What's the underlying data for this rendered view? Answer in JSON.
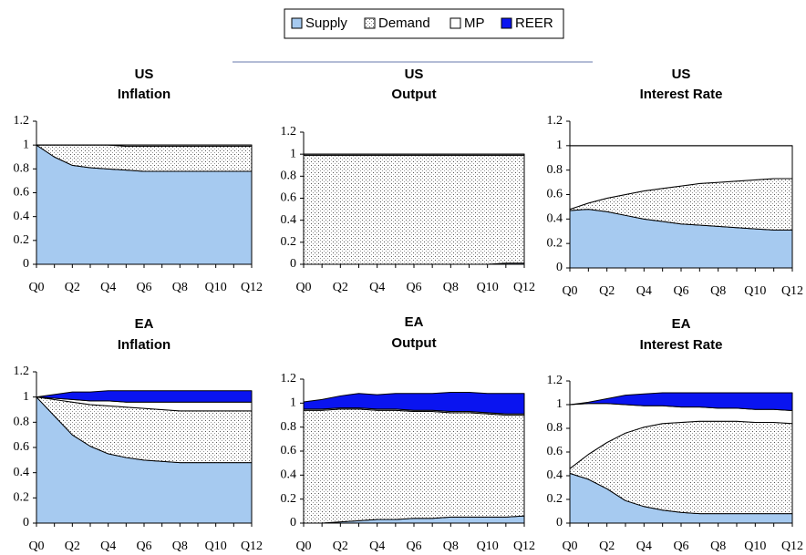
{
  "legend": [
    {
      "name": "Supply",
      "color": "#a6caf0"
    },
    {
      "name": "Demand",
      "color": "dotted"
    },
    {
      "name": "MP",
      "color": "#ffffff"
    },
    {
      "name": "REER",
      "color": "#0a14f0"
    }
  ],
  "chart_data": [
    {
      "type": "stacked-area",
      "title": "US",
      "subtitle": "Inflation",
      "categories": [
        "Q0",
        null,
        "Q2",
        null,
        "Q4",
        null,
        "Q6",
        null,
        "Q8",
        null,
        "Q10",
        null,
        "Q12"
      ],
      "ylim": [
        0,
        1.2
      ],
      "yticks": [
        0,
        0.2,
        0.4,
        0.6,
        0.8,
        1,
        1.2
      ],
      "series": [
        {
          "values": [
            1,
            0.9,
            0.83,
            0.81,
            0.8,
            0.79,
            0.78,
            0.78,
            0.78,
            0.78,
            0.78,
            0.78,
            0.78
          ]
        },
        {
          "values": [
            0,
            0.1,
            0.17,
            0.19,
            0.2,
            0.2,
            0.21,
            0.21,
            0.21,
            0.21,
            0.21,
            0.21,
            0.21
          ]
        },
        {
          "values": [
            0,
            0,
            0,
            0,
            0,
            0.01,
            0.01,
            0.01,
            0.01,
            0.01,
            0.01,
            0.01,
            0.01
          ]
        },
        {
          "values": [
            0,
            0,
            0,
            0,
            0,
            0,
            0,
            0,
            0,
            0,
            0,
            0,
            0
          ]
        }
      ]
    },
    {
      "type": "stacked-area",
      "title": "US",
      "subtitle": "Output",
      "categories": [
        "Q0",
        null,
        "Q2",
        null,
        "Q4",
        null,
        "Q6",
        null,
        "Q8",
        null,
        "Q10",
        null,
        "Q12"
      ],
      "ylim": [
        0,
        1.2
      ],
      "yticks": [
        0,
        0.2,
        0.4,
        0.6,
        0.8,
        1,
        1.2
      ],
      "series": [
        {
          "values": [
            0,
            0,
            0,
            0,
            0,
            0,
            0,
            0,
            0,
            0,
            0,
            0.01,
            0.01
          ]
        },
        {
          "values": [
            0.99,
            0.99,
            0.99,
            0.99,
            0.99,
            0.99,
            0.99,
            0.99,
            0.99,
            0.99,
            0.99,
            0.98,
            0.98
          ]
        },
        {
          "values": [
            0.01,
            0.01,
            0.01,
            0.01,
            0.01,
            0.01,
            0.01,
            0.01,
            0.01,
            0.01,
            0.01,
            0.01,
            0.01
          ]
        },
        {
          "values": [
            0,
            0,
            0,
            0,
            0,
            0,
            0,
            0,
            0,
            0,
            0,
            0,
            0
          ]
        }
      ]
    },
    {
      "type": "stacked-area",
      "title": "US",
      "subtitle": "Interest Rate",
      "categories": [
        "Q0",
        null,
        "Q2",
        null,
        "Q4",
        null,
        "Q6",
        null,
        "Q8",
        null,
        "Q10",
        null,
        "Q12"
      ],
      "ylim": [
        0,
        1.2
      ],
      "yticks": [
        0,
        0.2,
        0.4,
        0.6,
        0.8,
        1,
        1.2
      ],
      "series": [
        {
          "values": [
            0.47,
            0.48,
            0.46,
            0.43,
            0.4,
            0.38,
            0.36,
            0.35,
            0.34,
            0.33,
            0.32,
            0.31,
            0.31
          ]
        },
        {
          "values": [
            0.01,
            0.05,
            0.11,
            0.17,
            0.23,
            0.27,
            0.31,
            0.34,
            0.36,
            0.38,
            0.4,
            0.42,
            0.42
          ]
        },
        {
          "values": [
            0.52,
            0.47,
            0.43,
            0.4,
            0.37,
            0.35,
            0.33,
            0.31,
            0.3,
            0.29,
            0.28,
            0.27,
            0.27
          ]
        },
        {
          "values": [
            0,
            0,
            0,
            0,
            0,
            0,
            0,
            0,
            0,
            0,
            0,
            0,
            0
          ]
        }
      ]
    },
    {
      "type": "stacked-area",
      "title": "EA",
      "subtitle": "Inflation",
      "categories": [
        "Q0",
        null,
        "Q2",
        null,
        "Q4",
        null,
        "Q6",
        null,
        "Q8",
        null,
        "Q10",
        null,
        "Q12"
      ],
      "ylim": [
        0,
        1.2
      ],
      "yticks": [
        0,
        0.2,
        0.4,
        0.6,
        0.8,
        1,
        1.2
      ],
      "series": [
        {
          "values": [
            1,
            0.85,
            0.7,
            0.61,
            0.55,
            0.52,
            0.5,
            0.49,
            0.48,
            0.48,
            0.48,
            0.48,
            0.48
          ]
        },
        {
          "values": [
            0,
            0.13,
            0.26,
            0.33,
            0.38,
            0.4,
            0.41,
            0.41,
            0.41,
            0.41,
            0.41,
            0.41,
            0.41
          ]
        },
        {
          "values": [
            0,
            0.01,
            0.02,
            0.03,
            0.04,
            0.04,
            0.05,
            0.06,
            0.07,
            0.07,
            0.07,
            0.07,
            0.07
          ]
        },
        {
          "values": [
            0,
            0.03,
            0.06,
            0.07,
            0.08,
            0.09,
            0.09,
            0.09,
            0.09,
            0.09,
            0.09,
            0.09,
            0.09
          ]
        }
      ]
    },
    {
      "type": "stacked-area",
      "title": "EA",
      "subtitle": "Output",
      "categories": [
        "Q0",
        null,
        "Q2",
        null,
        "Q4",
        null,
        "Q6",
        null,
        "Q8",
        null,
        "Q10",
        null,
        "Q12"
      ],
      "ylim": [
        0,
        1.2
      ],
      "yticks": [
        0,
        0.2,
        0.4,
        0.6,
        0.8,
        1,
        1.2
      ],
      "series": [
        {
          "values": [
            0,
            0,
            0.01,
            0.02,
            0.03,
            0.03,
            0.04,
            0.04,
            0.05,
            0.05,
            0.05,
            0.05,
            0.06
          ]
        },
        {
          "values": [
            0.94,
            0.94,
            0.94,
            0.93,
            0.91,
            0.91,
            0.89,
            0.89,
            0.87,
            0.87,
            0.86,
            0.85,
            0.84
          ]
        },
        {
          "values": [
            0.01,
            0.01,
            0.01,
            0.01,
            0.01,
            0.01,
            0.01,
            0.01,
            0.01,
            0.01,
            0.01,
            0.01,
            0.01
          ]
        },
        {
          "values": [
            0.06,
            0.08,
            0.1,
            0.12,
            0.12,
            0.13,
            0.14,
            0.14,
            0.16,
            0.16,
            0.16,
            0.17,
            0.17
          ]
        }
      ]
    },
    {
      "type": "stacked-area",
      "title": "EA",
      "subtitle": "Interest Rate",
      "categories": [
        "Q0",
        null,
        "Q2",
        null,
        "Q4",
        null,
        "Q6",
        null,
        "Q8",
        null,
        "Q10",
        null,
        "Q12"
      ],
      "ylim": [
        0,
        1.2
      ],
      "yticks": [
        0,
        0.2,
        0.4,
        0.6,
        0.8,
        1,
        1.2
      ],
      "series": [
        {
          "values": [
            0.42,
            0.37,
            0.29,
            0.19,
            0.14,
            0.11,
            0.09,
            0.08,
            0.08,
            0.08,
            0.08,
            0.08,
            0.08
          ]
        },
        {
          "values": [
            0.04,
            0.21,
            0.39,
            0.57,
            0.67,
            0.73,
            0.76,
            0.78,
            0.78,
            0.78,
            0.77,
            0.77,
            0.76
          ]
        },
        {
          "values": [
            0.54,
            0.43,
            0.33,
            0.24,
            0.18,
            0.15,
            0.13,
            0.12,
            0.11,
            0.11,
            0.11,
            0.11,
            0.11
          ]
        },
        {
          "values": [
            0,
            0.01,
            0.04,
            0.08,
            0.1,
            0.11,
            0.12,
            0.12,
            0.13,
            0.13,
            0.14,
            0.14,
            0.15
          ]
        }
      ]
    }
  ]
}
